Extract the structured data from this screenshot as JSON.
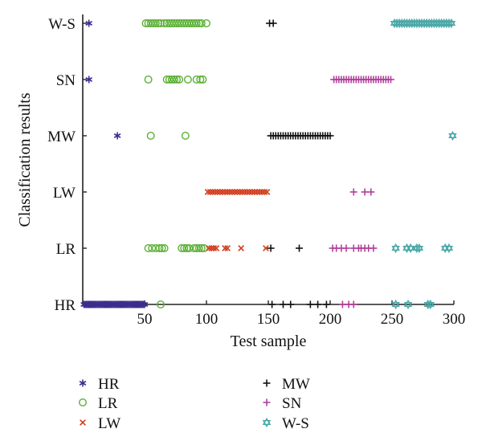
{
  "chart_data": {
    "type": "scatter",
    "xlabel": "Test sample",
    "ylabel": "Classification results",
    "xlim": [
      0,
      300
    ],
    "xticks": [
      50,
      100,
      150,
      200,
      250,
      300
    ],
    "categories": [
      "HR",
      "LR",
      "LW",
      "MW",
      "SN",
      "W-S"
    ],
    "grid": false,
    "legend_position": "bottom",
    "series": [
      {
        "name": "HR",
        "marker": "asterisk",
        "color": "#3b2e8c",
        "points": [
          {
            "y": "W-S",
            "x": [
              5
            ]
          },
          {
            "y": "SN",
            "x": [
              5
            ]
          },
          {
            "y": "MW",
            "x": [
              28
            ]
          },
          {
            "y": "HR",
            "x": [
              1,
              2,
              3,
              4,
              5,
              6,
              7,
              8,
              9,
              10,
              11,
              12,
              13,
              14,
              15,
              16,
              17,
              18,
              19,
              20,
              21,
              22,
              23,
              24,
              25,
              26,
              27,
              28,
              29,
              30,
              31,
              32,
              33,
              34,
              35,
              36,
              37,
              38,
              39,
              40,
              41,
              42,
              43,
              44,
              45,
              46,
              47,
              48,
              49,
              50
            ]
          }
        ]
      },
      {
        "name": "LR",
        "marker": "circle",
        "color": "#5cb036",
        "points": [
          {
            "y": "W-S",
            "x": [
              51,
              53,
              55,
              57,
              59,
              61,
              63,
              66,
              68,
              70,
              72,
              74,
              76,
              78,
              80,
              82,
              84,
              86,
              88,
              90,
              92,
              94,
              96,
              100
            ]
          },
          {
            "y": "SN",
            "x": [
              53,
              68,
              70,
              72,
              74,
              76,
              78,
              85,
              92,
              95,
              97
            ]
          },
          {
            "y": "MW",
            "x": [
              55,
              83
            ]
          },
          {
            "y": "LR",
            "x": [
              53,
              56,
              59,
              62,
              64,
              66,
              80,
              82,
              84,
              86,
              90,
              92,
              94,
              96,
              98
            ]
          },
          {
            "y": "HR",
            "x": [
              63
            ]
          }
        ]
      },
      {
        "name": "LW",
        "marker": "cross",
        "color": "#d23c1c",
        "points": [
          {
            "y": "LW",
            "x": [
              101,
              103,
              105,
              107,
              109,
              111,
              113,
              115,
              117,
              119,
              121,
              123,
              125,
              127,
              129,
              131,
              133,
              135,
              137,
              139,
              141,
              143,
              145,
              147,
              149
            ]
          },
          {
            "y": "LR",
            "x": [
              102,
              104,
              106,
              108,
              115,
              117,
              128,
              148
            ]
          }
        ]
      },
      {
        "name": "MW",
        "marker": "plus",
        "color": "#111111",
        "points": [
          {
            "y": "W-S",
            "x": [
              151,
              154
            ]
          },
          {
            "y": "MW",
            "x": [
              152,
              154,
              156,
              158,
              160,
              162,
              164,
              166,
              168,
              170,
              172,
              174,
              176,
              178,
              180,
              182,
              184,
              186,
              188,
              190,
              192,
              194,
              196,
              198,
              200
            ]
          },
          {
            "y": "LR",
            "x": [
              152,
              175
            ]
          },
          {
            "y": "HR",
            "x": [
              153,
              162,
              168,
              184,
              190,
              197
            ]
          }
        ]
      },
      {
        "name": "SN",
        "marker": "plus",
        "color": "#b0409a",
        "points": [
          {
            "y": "SN",
            "x": [
              203,
              205,
              207,
              209,
              211,
              213,
              215,
              217,
              219,
              221,
              223,
              225,
              227,
              229,
              231,
              233,
              235,
              237,
              239,
              241,
              243,
              245,
              247,
              249
            ]
          },
          {
            "y": "LW",
            "x": [
              219,
              228,
              233
            ]
          },
          {
            "y": "LR",
            "x": [
              202,
              205,
              209,
              213,
              219,
              223,
              225,
              228,
              231,
              235
            ]
          },
          {
            "y": "HR",
            "x": [
              210,
              215,
              219
            ]
          }
        ]
      },
      {
        "name": "W-S",
        "marker": "hexagram",
        "color": "#4aa8a8",
        "points": [
          {
            "y": "W-S",
            "x": [
              252,
              254,
              256,
              258,
              260,
              262,
              264,
              266,
              268,
              270,
              272,
              274,
              276,
              278,
              280,
              282,
              284,
              286,
              288,
              290,
              292,
              294,
              296,
              298
            ]
          },
          {
            "y": "MW",
            "x": [
              299
            ]
          },
          {
            "y": "LR",
            "x": [
              253,
              262,
              265,
              270,
              272,
              293,
              296
            ]
          },
          {
            "y": "HR",
            "x": [
              253,
              263,
              279,
              281
            ]
          }
        ]
      }
    ]
  }
}
